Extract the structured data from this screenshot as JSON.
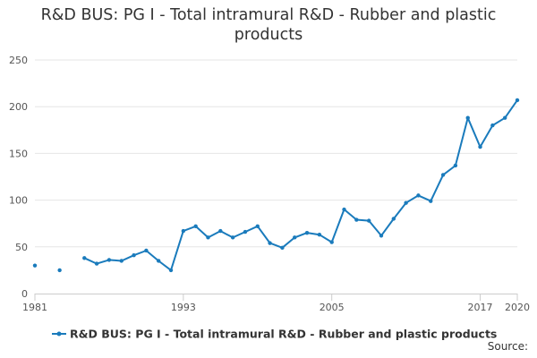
{
  "chart_data": {
    "type": "line",
    "title": "R&D BUS: PG I - Total intramural R&D - Rubber and plastic products",
    "title_lines": [
      "R&D BUS: PG I - Total intramural R&D - Rubber and plastic",
      "products"
    ],
    "xlabel": "",
    "ylabel": "",
    "ylim": [
      0,
      250
    ],
    "yticks": [
      0,
      50,
      100,
      150,
      200,
      250
    ],
    "xlim": [
      1981,
      2020
    ],
    "xticks": [
      1981,
      1993,
      2005,
      2017,
      2020
    ],
    "grid": true,
    "legend_position": "bottom",
    "color": "#1a7bbc",
    "series": [
      {
        "name": "R&D BUS: PG I - Total intramural R&D - Rubber and plastic products",
        "x": [
          1981,
          1983,
          1985,
          1986,
          1987,
          1988,
          1989,
          1990,
          1991,
          1992,
          1993,
          1994,
          1995,
          1996,
          1997,
          1998,
          1999,
          2000,
          2001,
          2002,
          2003,
          2004,
          2005,
          2006,
          2007,
          2008,
          2009,
          2010,
          2011,
          2012,
          2013,
          2014,
          2015,
          2016,
          2017,
          2018,
          2019,
          2020
        ],
        "values": [
          30,
          25,
          38,
          32,
          36,
          35,
          41,
          46,
          35,
          25,
          67,
          72,
          60,
          67,
          60,
          66,
          72,
          54,
          49,
          60,
          65,
          63,
          55,
          90,
          79,
          78,
          62,
          80,
          97,
          105,
          99,
          127,
          137,
          188,
          157,
          180,
          188,
          207
        ],
        "segment_breaks_after": [
          1981,
          1983
        ]
      }
    ]
  },
  "source_label": "Source:"
}
